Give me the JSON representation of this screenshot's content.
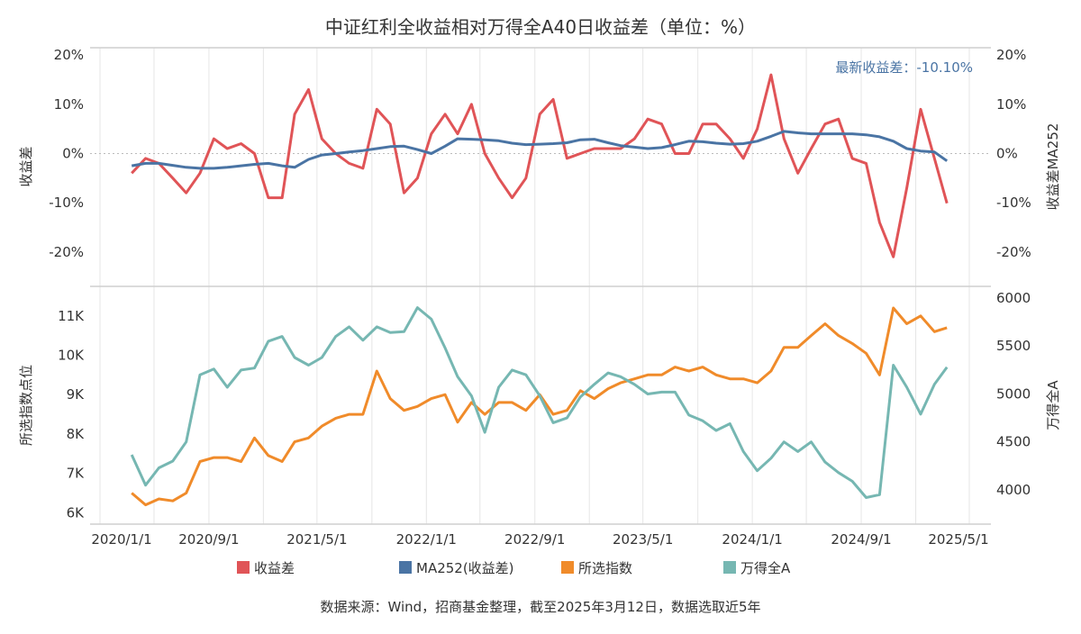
{
  "chart_data": [
    {
      "type": "line",
      "title": "中证红利全收益相对万得全A40日收益差（单位：%）",
      "annotation": "最新收益差：-10.10%",
      "ylabel_left": "收益差",
      "ylabel_right": "收益差MA252",
      "ylim": [
        -27,
        21.5
      ],
      "yticks": [
        "20%",
        "10%",
        "0%",
        "-10%",
        "-20%"
      ],
      "ytick_values": [
        20,
        10,
        0,
        -10,
        -20
      ],
      "grid": "vertical",
      "zero_line": "dotted",
      "x": [
        "2020-03",
        "2020-04",
        "2020-05",
        "2020-06",
        "2020-07",
        "2020-08",
        "2020-09",
        "2020-10",
        "2020-11",
        "2020-12",
        "2021-01",
        "2021-02",
        "2021-03",
        "2021-04",
        "2021-05",
        "2021-06",
        "2021-07",
        "2021-08",
        "2021-09",
        "2021-10",
        "2021-11",
        "2021-12",
        "2022-01",
        "2022-02",
        "2022-03",
        "2022-04",
        "2022-05",
        "2022-06",
        "2022-07",
        "2022-08",
        "2022-09",
        "2022-10",
        "2022-11",
        "2022-12",
        "2023-01",
        "2023-02",
        "2023-03",
        "2023-04",
        "2023-05",
        "2023-06",
        "2023-07",
        "2023-08",
        "2023-09",
        "2023-10",
        "2023-11",
        "2023-12",
        "2024-01",
        "2024-02",
        "2024-03",
        "2024-04",
        "2024-05",
        "2024-06",
        "2024-07",
        "2024-08",
        "2024-09",
        "2024-10",
        "2024-11",
        "2024-12",
        "2025-01",
        "2025-02",
        "2025-03"
      ],
      "series": [
        {
          "name": "收益差",
          "color": "#e05457",
          "axis": "left",
          "values": [
            -4,
            -1,
            -2,
            -5,
            -8,
            -4,
            3,
            1,
            2,
            0,
            -9,
            -9,
            8,
            13,
            3,
            0,
            -2,
            -3,
            9,
            6,
            -8,
            -5,
            4,
            8,
            4,
            10,
            0,
            -5,
            -9,
            -5,
            8,
            11,
            -1,
            0,
            1,
            1,
            1,
            3,
            7,
            6,
            0,
            0,
            6,
            6,
            3,
            -1,
            5,
            16,
            3,
            -4,
            1,
            6,
            7,
            -1,
            -2,
            -14,
            -21,
            -7,
            9,
            -1,
            -10.1
          ]
        },
        {
          "name": "MA252(收益差)",
          "color": "#4a74a4",
          "axis": "right",
          "values": [
            -2.5,
            -2,
            -2,
            -2.4,
            -2.8,
            -3,
            -3,
            -2.8,
            -2.5,
            -2.2,
            -2,
            -2.5,
            -2.8,
            -1.2,
            -0.3,
            0,
            0.3,
            0.6,
            1,
            1.4,
            1.5,
            0.8,
            0,
            1.5,
            3,
            2.9,
            2.8,
            2.6,
            2.1,
            1.8,
            1.9,
            2,
            2.2,
            2.8,
            2.9,
            2.2,
            1.6,
            1.3,
            1,
            1.2,
            1.8,
            2.5,
            2.4,
            2.1,
            1.9,
            2,
            2.5,
            3.5,
            4.5,
            4.2,
            4,
            4,
            4,
            4,
            3.8,
            3.4,
            2.5,
            1,
            0.5,
            0.3,
            -1.5
          ]
        }
      ]
    },
    {
      "type": "line",
      "ylabel_left": "所选指数点位",
      "ylabel_right": "万得全A",
      "ylim_left": [
        5.71,
        11.75
      ],
      "yticks_left": [
        "11K",
        "10K",
        "9K",
        "8K",
        "7K",
        "6K"
      ],
      "ytick_values_left": [
        11,
        10,
        9,
        8,
        7,
        6
      ],
      "ylim_right": [
        3643,
        6122
      ],
      "yticks_right": [
        "6000",
        "5500",
        "5000",
        "4500",
        "4000"
      ],
      "ytick_values_right": [
        6000,
        5500,
        5000,
        4500,
        4000
      ],
      "xticks": [
        "2020/1/1",
        "2020/9/1",
        "2021/5/1",
        "2022/1/1",
        "2022/9/1",
        "2023/5/1",
        "2024/1/1",
        "2024/9/1",
        "2025/5/1"
      ],
      "xtick_dates": [
        "2020-01-01",
        "2020-09-01",
        "2021-05-01",
        "2022-01-01",
        "2022-09-01",
        "2023-05-01",
        "2024-01-01",
        "2024-09-01",
        "2025-05-01"
      ],
      "series": [
        {
          "name": "所选指数",
          "color": "#f08b2a",
          "axis": "left",
          "unit": "K",
          "values": [
            6.5,
            6.2,
            6.35,
            6.3,
            6.5,
            7.3,
            7.4,
            7.4,
            7.3,
            7.9,
            7.45,
            7.3,
            7.8,
            7.9,
            8.2,
            8.4,
            8.5,
            8.5,
            9.6,
            8.9,
            8.6,
            8.7,
            8.9,
            9.0,
            8.3,
            8.8,
            8.5,
            8.8,
            8.8,
            8.6,
            9.0,
            8.5,
            8.6,
            9.1,
            8.9,
            9.15,
            9.3,
            9.4,
            9.5,
            9.5,
            9.7,
            9.6,
            9.7,
            9.5,
            9.4,
            9.4,
            9.3,
            9.6,
            10.2,
            10.2,
            10.5,
            10.8,
            10.5,
            10.3,
            10.05,
            9.5,
            11.2,
            10.8,
            11.0,
            10.6,
            10.7
          ]
        },
        {
          "name": "万得全A",
          "color": "#76b7b2",
          "axis": "right",
          "values": [
            4366,
            4050,
            4230,
            4300,
            4500,
            5200,
            5260,
            5070,
            5250,
            5270,
            5550,
            5600,
            5380,
            5300,
            5380,
            5600,
            5700,
            5560,
            5700,
            5640,
            5650,
            5900,
            5780,
            5480,
            5180,
            4980,
            4600,
            5070,
            5250,
            5200,
            4980,
            4700,
            4750,
            4970,
            5100,
            5220,
            5180,
            5100,
            5000,
            5020,
            5020,
            4780,
            4720,
            4620,
            4690,
            4400,
            4200,
            4330,
            4500,
            4400,
            4500,
            4290,
            4180,
            4090,
            3920,
            3950,
            5300,
            5070,
            4790,
            5100,
            5280
          ]
        }
      ]
    }
  ],
  "legend": [
    {
      "label": "收益差",
      "color": "#e05457"
    },
    {
      "label": "MA252(收益差)",
      "color": "#4a74a4"
    },
    {
      "label": "所选指数",
      "color": "#f08b2a"
    },
    {
      "label": "万得全A",
      "color": "#76b7b2"
    }
  ],
  "footer": "数据来源：Wind，招商基金整理，截至2025年3月12日，数据选取近5年"
}
